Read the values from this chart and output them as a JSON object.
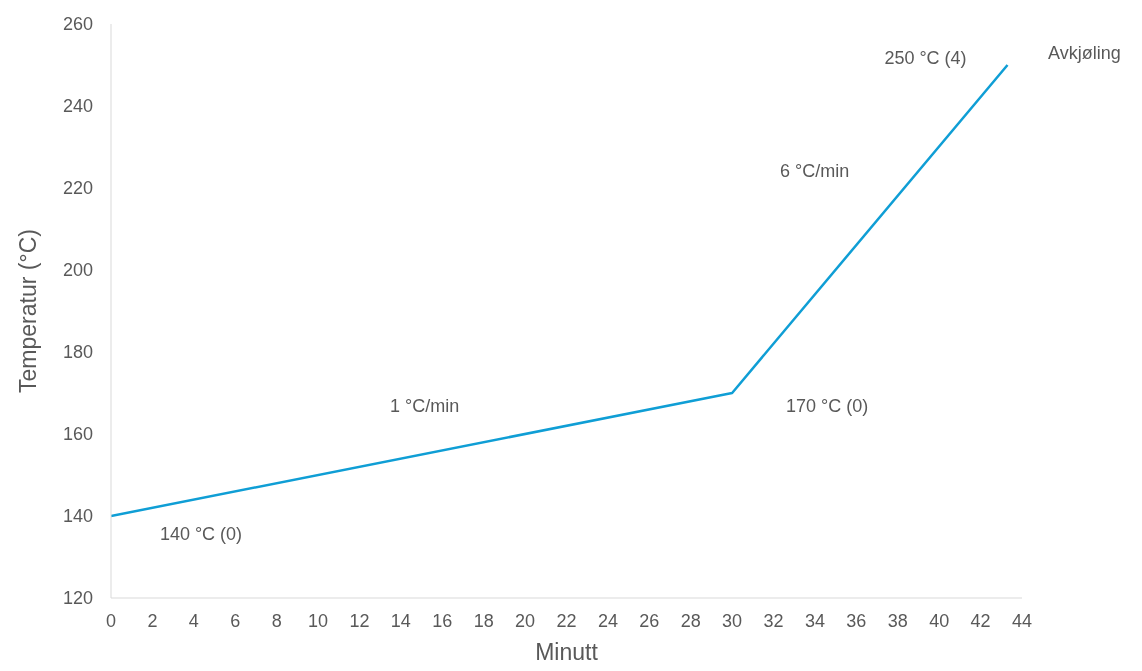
{
  "chart_data": {
    "type": "line",
    "xlabel": "Minutt",
    "ylabel": "Temperatur (°C)",
    "x": [
      0,
      30,
      43.3
    ],
    "series": [
      {
        "color": "#0f9ed5",
        "values": [
          140,
          170,
          250
        ]
      }
    ],
    "xlim": [
      0,
      44
    ],
    "xticks": [
      0,
      2,
      4,
      6,
      8,
      10,
      12,
      14,
      16,
      18,
      20,
      22,
      24,
      26,
      28,
      30,
      32,
      34,
      36,
      38,
      40,
      42,
      44
    ],
    "ylim": [
      120,
      260
    ],
    "yticks": [
      120,
      140,
      160,
      180,
      200,
      220,
      240,
      260
    ],
    "grid": false,
    "legend": false,
    "marker": "none",
    "line_style": "solid",
    "annotations": [
      {
        "text": "140 °C (0)",
        "x": 0,
        "y": 140
      },
      "1 °C/min",
      {
        "text": "170 °C (0)",
        "x": 30,
        "y": 170
      },
      "6 °C/min",
      {
        "text": "250 °C (4)",
        "x": 43.3,
        "y": 250
      },
      "Avkjøling"
    ]
  }
}
